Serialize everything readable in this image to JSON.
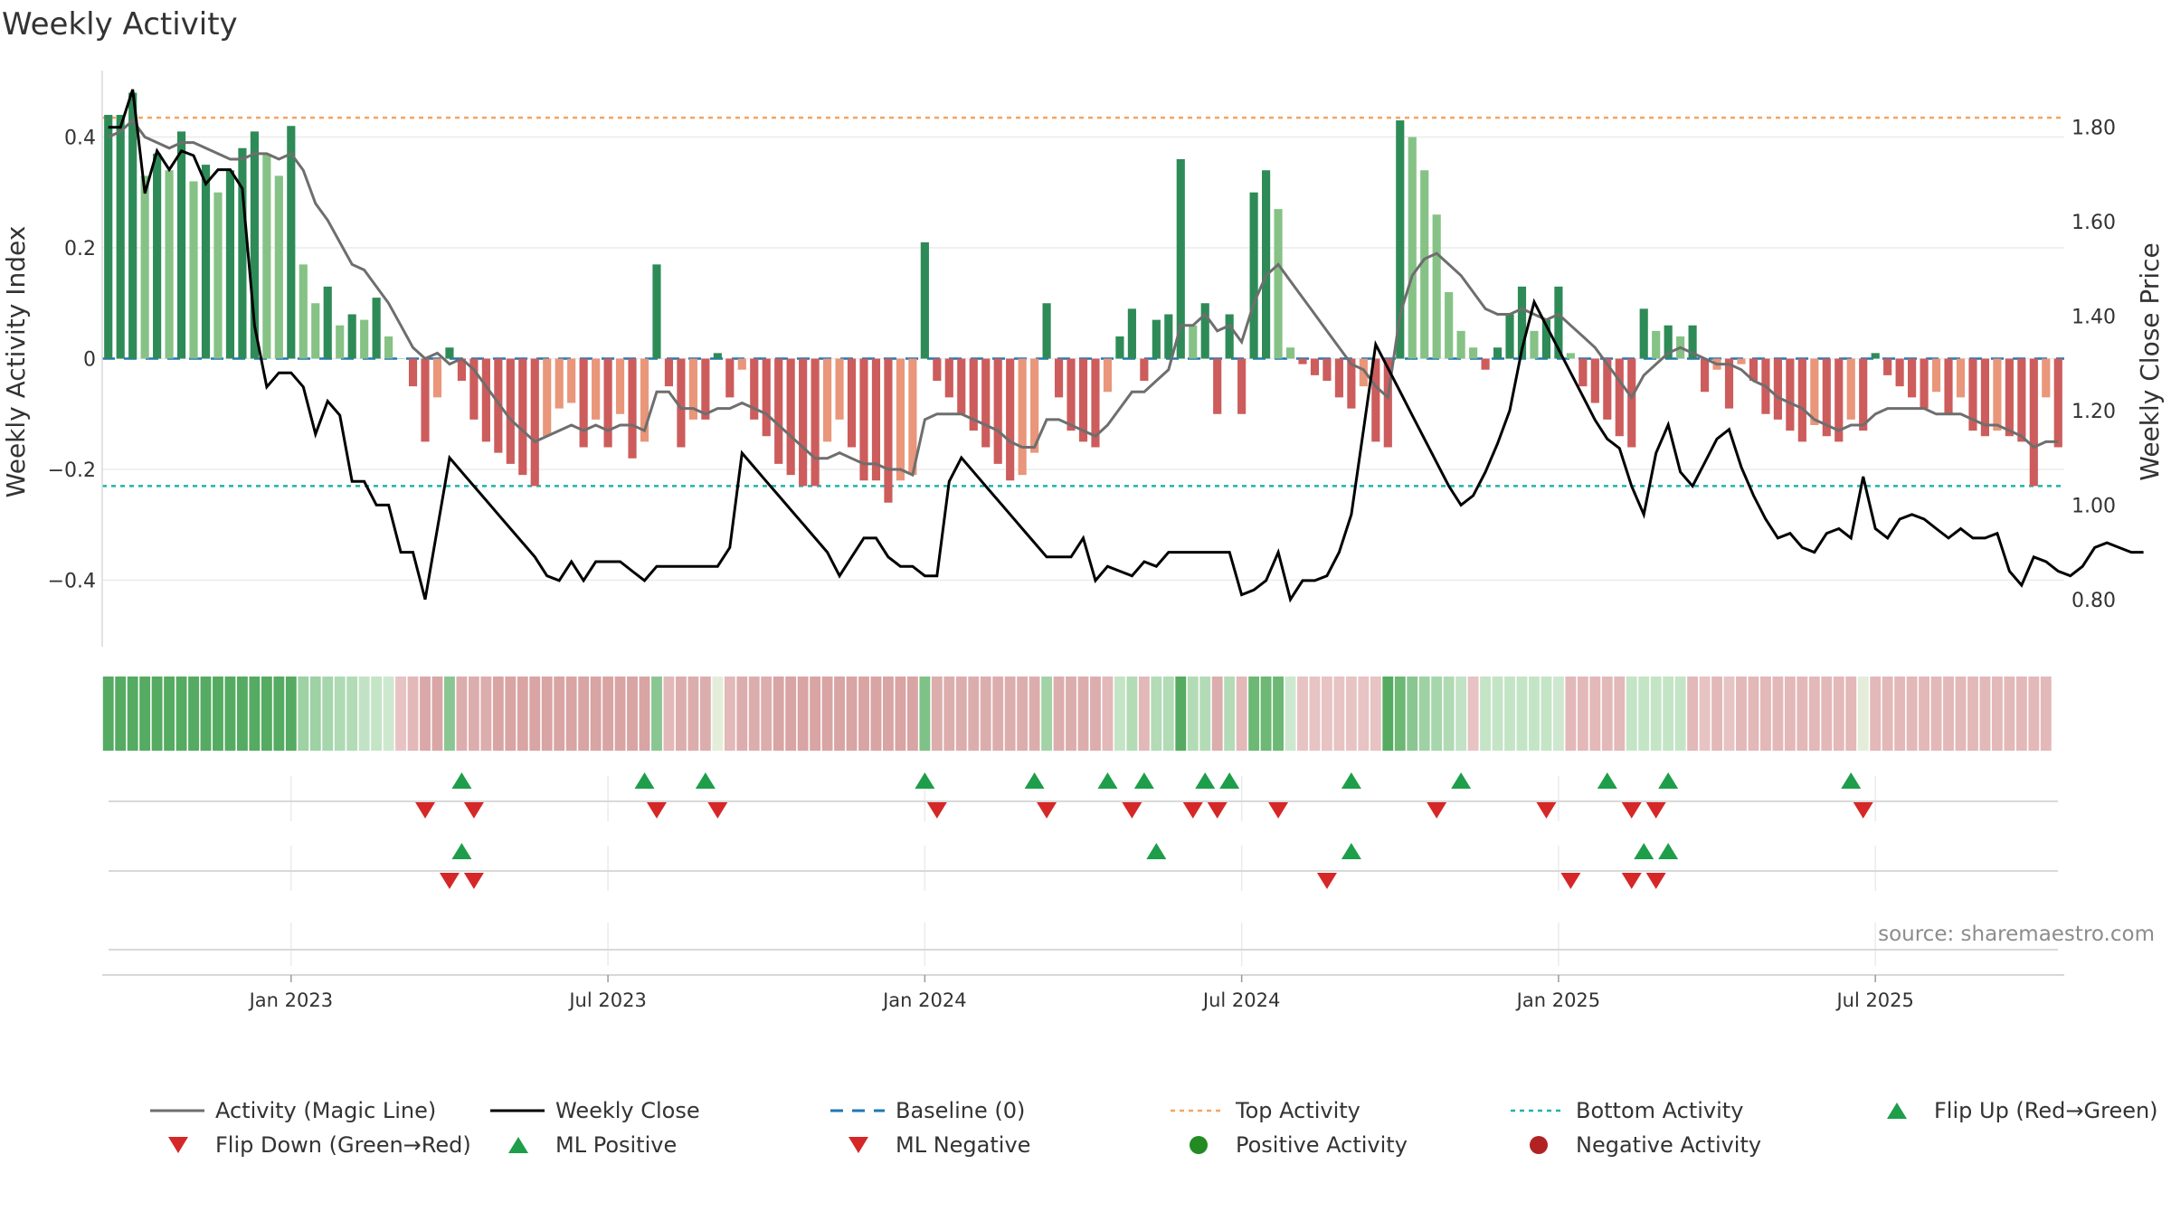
{
  "chart_data": {
    "type": "bar+line",
    "title": "Weekly Activity",
    "ylabel_left": "Weekly Activity Index",
    "ylabel_right": "Weekly Close Price",
    "ylim_left": [
      -0.52,
      0.52
    ],
    "ylim_right": [
      0.7,
      1.92
    ],
    "yticks_left": [
      {
        "value": 0.4,
        "label": "0.4"
      },
      {
        "value": 0.2,
        "label": "0.2"
      },
      {
        "value": 0,
        "label": "0"
      },
      {
        "value": -0.2,
        "label": "−0.2"
      },
      {
        "value": -0.4,
        "label": "−0.4"
      }
    ],
    "yticks_right": [
      {
        "value": 1.8,
        "label": "1.80"
      },
      {
        "value": 1.6,
        "label": "1.60"
      },
      {
        "value": 1.4,
        "label": "1.40"
      },
      {
        "value": 1.2,
        "label": "1.20"
      },
      {
        "value": 1.0,
        "label": "1.00"
      },
      {
        "value": 0.8,
        "label": "0.80"
      }
    ],
    "xticks": [
      {
        "week": 15,
        "label": "Jan 2023"
      },
      {
        "week": 41,
        "label": "Jul 2023"
      },
      {
        "week": 67,
        "label": "Jan 2024"
      },
      {
        "week": 93,
        "label": "Jul 2024"
      },
      {
        "week": 119,
        "label": "Jan 2025"
      },
      {
        "week": 145,
        "label": "Jul 2025"
      }
    ],
    "top_activity": 0.435,
    "bottom_activity": -0.23,
    "activity": [
      0.44,
      0.44,
      0.48,
      0.33,
      0.37,
      0.34,
      0.41,
      0.32,
      0.35,
      0.3,
      0.34,
      0.38,
      0.41,
      0.37,
      0.33,
      0.42,
      0.17,
      0.1,
      0.13,
      0.06,
      0.08,
      0.07,
      0.11,
      0.04,
      0.0,
      -0.05,
      -0.15,
      -0.07,
      0.02,
      -0.04,
      -0.11,
      -0.15,
      -0.17,
      -0.19,
      -0.21,
      -0.23,
      -0.14,
      -0.09,
      -0.08,
      -0.16,
      -0.11,
      -0.16,
      -0.1,
      -0.18,
      -0.15,
      0.17,
      -0.05,
      -0.16,
      -0.11,
      -0.11,
      0.01,
      -0.07,
      -0.02,
      -0.11,
      -0.14,
      -0.19,
      -0.21,
      -0.23,
      -0.23,
      -0.15,
      -0.11,
      -0.16,
      -0.22,
      -0.22,
      -0.26,
      -0.22,
      -0.21,
      0.21,
      -0.04,
      -0.07,
      -0.1,
      -0.13,
      -0.16,
      -0.19,
      -0.22,
      -0.21,
      -0.17,
      0.1,
      -0.07,
      -0.13,
      -0.15,
      -0.16,
      -0.06,
      0.04,
      0.09,
      -0.04,
      0.07,
      0.08,
      0.36,
      0.06,
      0.1,
      -0.1,
      0.08,
      -0.1,
      0.3,
      0.34,
      0.27,
      0.02,
      -0.01,
      -0.03,
      -0.04,
      -0.07,
      -0.09,
      -0.05,
      -0.15,
      -0.16,
      0.43,
      0.4,
      0.34,
      0.26,
      0.12,
      0.05,
      0.02,
      -0.02,
      0.02,
      0.08,
      0.13,
      0.05,
      0.07,
      0.13,
      0.01,
      -0.05,
      -0.08,
      -0.11,
      -0.14,
      -0.16,
      0.09,
      0.05,
      0.06,
      0.04,
      0.06,
      -0.06,
      -0.02,
      -0.09,
      -0.01,
      -0.04,
      -0.1,
      -0.11,
      -0.13,
      -0.15,
      -0.12,
      -0.14,
      -0.15,
      -0.11,
      -0.13,
      0.01,
      -0.03,
      -0.05,
      -0.07,
      -0.09,
      -0.06,
      -0.1,
      -0.07,
      -0.13,
      -0.14,
      -0.13,
      -0.14,
      -0.15,
      -0.23,
      -0.07,
      -0.16
    ],
    "magic_line": [
      0.4,
      0.41,
      0.43,
      0.4,
      0.39,
      0.38,
      0.39,
      0.39,
      0.38,
      0.37,
      0.36,
      0.36,
      0.37,
      0.37,
      0.36,
      0.37,
      0.34,
      0.28,
      0.25,
      0.21,
      0.17,
      0.16,
      0.13,
      0.1,
      0.06,
      0.02,
      0.0,
      0.01,
      -0.01,
      0.0,
      -0.02,
      -0.05,
      -0.08,
      -0.11,
      -0.13,
      -0.15,
      -0.14,
      -0.13,
      -0.12,
      -0.13,
      -0.12,
      -0.13,
      -0.12,
      -0.12,
      -0.13,
      -0.06,
      -0.06,
      -0.09,
      -0.09,
      -0.1,
      -0.09,
      -0.09,
      -0.08,
      -0.09,
      -0.1,
      -0.12,
      -0.14,
      -0.16,
      -0.18,
      -0.18,
      -0.17,
      -0.18,
      -0.19,
      -0.19,
      -0.2,
      -0.2,
      -0.21,
      -0.11,
      -0.1,
      -0.1,
      -0.1,
      -0.11,
      -0.12,
      -0.13,
      -0.15,
      -0.16,
      -0.16,
      -0.11,
      -0.11,
      -0.12,
      -0.13,
      -0.14,
      -0.12,
      -0.09,
      -0.06,
      -0.06,
      -0.04,
      -0.02,
      0.06,
      0.06,
      0.08,
      0.05,
      0.06,
      0.03,
      0.1,
      0.15,
      0.17,
      0.14,
      0.11,
      0.08,
      0.05,
      0.02,
      -0.01,
      -0.02,
      -0.05,
      -0.07,
      0.08,
      0.15,
      0.18,
      0.19,
      0.17,
      0.15,
      0.12,
      0.09,
      0.08,
      0.08,
      0.09,
      0.08,
      0.07,
      0.08,
      0.06,
      0.04,
      0.02,
      -0.01,
      -0.04,
      -0.07,
      -0.03,
      -0.01,
      0.01,
      0.02,
      0.01,
      0.0,
      -0.01,
      -0.01,
      -0.02,
      -0.04,
      -0.05,
      -0.07,
      -0.08,
      -0.09,
      -0.11,
      -0.12,
      -0.13,
      -0.12,
      -0.12,
      -0.1,
      -0.09,
      -0.09,
      -0.09,
      -0.09,
      -0.1,
      -0.1,
      -0.1,
      -0.11,
      -0.12,
      -0.12,
      -0.13,
      -0.14,
      -0.16,
      -0.15,
      -0.15
    ],
    "weekly_close": [
      1.8,
      1.8,
      1.88,
      1.66,
      1.75,
      1.71,
      1.75,
      1.74,
      1.68,
      1.71,
      1.71,
      1.67,
      1.38,
      1.25,
      1.28,
      1.28,
      1.25,
      1.15,
      1.22,
      1.19,
      1.05,
      1.05,
      1.0,
      1.0,
      0.9,
      0.9,
      0.8,
      0.95,
      1.1,
      1.07,
      1.04,
      1.01,
      0.98,
      0.95,
      0.92,
      0.89,
      0.85,
      0.84,
      0.88,
      0.84,
      0.88,
      0.88,
      0.88,
      0.86,
      0.84,
      0.87,
      0.87,
      0.87,
      0.87,
      0.87,
      0.87,
      0.91,
      1.11,
      1.08,
      1.05,
      1.02,
      0.99,
      0.96,
      0.93,
      0.9,
      0.85,
      0.89,
      0.93,
      0.93,
      0.89,
      0.87,
      0.87,
      0.85,
      0.85,
      1.05,
      1.1,
      1.07,
      1.04,
      1.01,
      0.98,
      0.95,
      0.92,
      0.89,
      0.89,
      0.89,
      0.93,
      0.84,
      0.87,
      0.86,
      0.85,
      0.88,
      0.87,
      0.9,
      0.9,
      0.9,
      0.9,
      0.9,
      0.9,
      0.81,
      0.82,
      0.84,
      0.9,
      0.8,
      0.84,
      0.84,
      0.85,
      0.9,
      0.98,
      1.16,
      1.34,
      1.29,
      1.24,
      1.19,
      1.14,
      1.09,
      1.04,
      1.0,
      1.02,
      1.07,
      1.13,
      1.2,
      1.33,
      1.43,
      1.38,
      1.33,
      1.28,
      1.23,
      1.18,
      1.14,
      1.12,
      1.04,
      0.98,
      1.11,
      1.17,
      1.07,
      1.04,
      1.09,
      1.14,
      1.16,
      1.08,
      1.02,
      0.97,
      0.93,
      0.94,
      0.91,
      0.9,
      0.94,
      0.95,
      0.93,
      1.06,
      0.95,
      0.93,
      0.97,
      0.98,
      0.97,
      0.95,
      0.93,
      0.95,
      0.93,
      0.93,
      0.94,
      0.86,
      0.83,
      0.89,
      0.88,
      0.86,
      0.85,
      0.87,
      0.91,
      0.92,
      0.91,
      0.9,
      0.9
    ],
    "strip_colors": [
      "#55ab61",
      "#55ab61",
      "#55ab61",
      "#55ab61",
      "#55ab61",
      "#55ab61",
      "#55ab61",
      "#55ab61",
      "#55ab61",
      "#55ab61",
      "#55ab61",
      "#55ab61",
      "#55ab61",
      "#55ab61",
      "#55ab61",
      "#55ab61",
      "#9ed1a3",
      "#9ed1a3",
      "#a6d6ab",
      "#b0dab4",
      "#b3dbb6",
      "#c1e2c4",
      "#c4e4c6",
      "#cde8cf",
      "#e7c3c3",
      "#e3b8b8",
      "#daa8a8",
      "#d9a6a6",
      "#8ac692",
      "#dcadad",
      "#dcadad",
      "#dcadad",
      "#d8a4a4",
      "#d8a4a4",
      "#d8a4a4",
      "#d8a4a4",
      "#d8a4a4",
      "#d8a4a4",
      "#d8a4a4",
      "#d8a4a4",
      "#d8a4a4",
      "#d8a4a4",
      "#d8a4a4",
      "#d8a4a4",
      "#d8a4a4",
      "#8ac692",
      "#e3b8b8",
      "#dcadad",
      "#dcadad",
      "#dcadad",
      "#e4edd9",
      "#e3b8b8",
      "#dcadad",
      "#dcadad",
      "#dcadad",
      "#d8a4a4",
      "#d8a4a4",
      "#d8a4a4",
      "#d8a4a4",
      "#d8a4a4",
      "#d8a4a4",
      "#d8a4a4",
      "#d8a4a4",
      "#d8a4a4",
      "#d8a4a4",
      "#d8a4a4",
      "#d8a4a4",
      "#7fc287",
      "#dcadad",
      "#dcadad",
      "#dcadad",
      "#dcadad",
      "#dcadad",
      "#dcadad",
      "#dcadad",
      "#dcadad",
      "#dcadad",
      "#a2d3a6",
      "#dcadad",
      "#dcadad",
      "#dcadad",
      "#dcadad",
      "#e3b8b8",
      "#c4e4c6",
      "#b3dbb6",
      "#e3b8b8",
      "#b3dbb6",
      "#b3dbb6",
      "#55ab61",
      "#b3dbb6",
      "#b3dbb6",
      "#dcadad",
      "#b3dbb6",
      "#e3b8b8",
      "#6cb874",
      "#6cb874",
      "#6cb874",
      "#cde8cf",
      "#e7c3c3",
      "#e7c3c3",
      "#e7c3c3",
      "#e7c3c3",
      "#e7c3c3",
      "#e7c3c3",
      "#e7c3c3",
      "#55ab61",
      "#6cb874",
      "#8ac692",
      "#9ed1a3",
      "#a6d6ab",
      "#b0dab4",
      "#c1e2c4",
      "#e7c3c3",
      "#c4e4c6",
      "#c4e4c6",
      "#c4e4c6",
      "#c4e4c6",
      "#c4e4c6",
      "#c4e4c6",
      "#cde8cf",
      "#e3b8b8",
      "#e3b8b8",
      "#e3b8b8",
      "#e3b8b8",
      "#e3b8b8",
      "#c4e4c6",
      "#c4e4c6",
      "#c4e4c6",
      "#c4e4c6",
      "#c4e4c6",
      "#e3b8b8",
      "#e7c3c3",
      "#e3b8b8",
      "#e7c3c3",
      "#e3b8b8",
      "#e3b8b8",
      "#e3b8b8",
      "#e3b8b8",
      "#e3b8b8",
      "#e3b8b8",
      "#e3b8b8",
      "#e3b8b8",
      "#e3b8b8",
      "#e3b8b8",
      "#e4edd9",
      "#e3b8b8",
      "#e3b8b8",
      "#e3b8b8",
      "#e3b8b8",
      "#e3b8b8",
      "#e3b8b8",
      "#e3b8b8",
      "#e3b8b8",
      "#e3b8b8",
      "#e3b8b8",
      "#e3b8b8",
      "#e3b8b8",
      "#e3b8b8",
      "#e3b8b8",
      "#e3b8b8"
    ],
    "flip_up_weeks": [
      29,
      44,
      49,
      67,
      76,
      82,
      85,
      90,
      92,
      102,
      111,
      123,
      128,
      143
    ],
    "flip_down_weeks": [
      26,
      30,
      45,
      50,
      68,
      77,
      84,
      89,
      91,
      96,
      109,
      118,
      125,
      127,
      144
    ],
    "ml_positive_weeks": [
      29,
      86,
      102,
      126,
      128
    ],
    "ml_negative_weeks": [
      28,
      30,
      100,
      120,
      125,
      127
    ],
    "colors": {
      "bar_green_dark": "#2e8b57",
      "bar_green_light": "#86c286",
      "bar_red_dark": "#cd5c5c",
      "bar_red_light": "#e9967a",
      "magic_line": "#6e6e6e",
      "close_line": "#000000",
      "baseline": "#1f77b4",
      "top_activity": "#f4a460",
      "bottom_activity": "#20b2aa",
      "flip_up": "#1e9e4a",
      "flip_down": "#d62728",
      "positive_activity": "#228b22",
      "negative_activity": "#b22222"
    },
    "source": "source: sharemaestro.com",
    "legend": [
      {
        "label": "Activity (Magic Line)",
        "kind": "line",
        "color": "#6e6e6e"
      },
      {
        "label": "Weekly Close",
        "kind": "line",
        "color": "#000000"
      },
      {
        "label": "Baseline (0)",
        "kind": "dash",
        "color": "#1f77b4"
      },
      {
        "label": "Top Activity",
        "kind": "dot",
        "color": "#f4a460"
      },
      {
        "label": "Bottom Activity",
        "kind": "dot",
        "color": "#20b2aa"
      },
      {
        "label": "Flip Up (Red→Green)",
        "kind": "up",
        "color": "#1e9e4a"
      },
      {
        "label": "Flip Down (Green→Red)",
        "kind": "down",
        "color": "#d62728"
      },
      {
        "label": "ML Positive",
        "kind": "up",
        "color": "#1e9e4a"
      },
      {
        "label": "ML Negative",
        "kind": "down",
        "color": "#d62728"
      },
      {
        "label": "Positive Activity",
        "kind": "circle",
        "color": "#228b22"
      },
      {
        "label": "Negative Activity",
        "kind": "circle",
        "color": "#b22222"
      }
    ]
  }
}
